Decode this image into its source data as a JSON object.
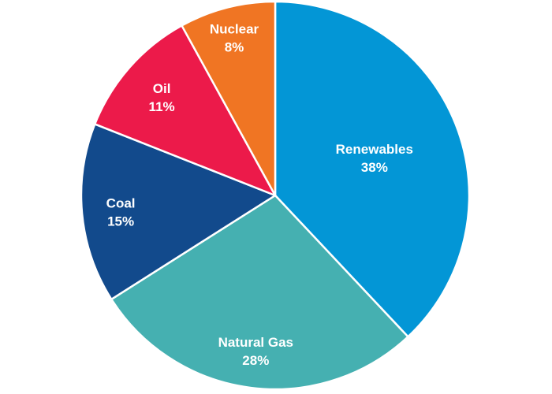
{
  "chart_data": {
    "type": "pie",
    "title": "",
    "start_angle_deg": 0,
    "direction": "clockwise",
    "legend": "none",
    "slices": [
      {
        "label": "Renewables",
        "value": 38,
        "value_label": "38%",
        "color": "#0396d6"
      },
      {
        "label": "Natural Gas",
        "value": 28,
        "value_label": "28%",
        "color": "#45b0b1"
      },
      {
        "label": "Coal",
        "value": 15,
        "value_label": "15%",
        "color": "#124a8c"
      },
      {
        "label": "Oil",
        "value": 11,
        "value_label": "11%",
        "color": "#ec1a4a"
      },
      {
        "label": "Nuclear",
        "value": 8,
        "value_label": "8%",
        "color": "#f07523"
      }
    ]
  }
}
